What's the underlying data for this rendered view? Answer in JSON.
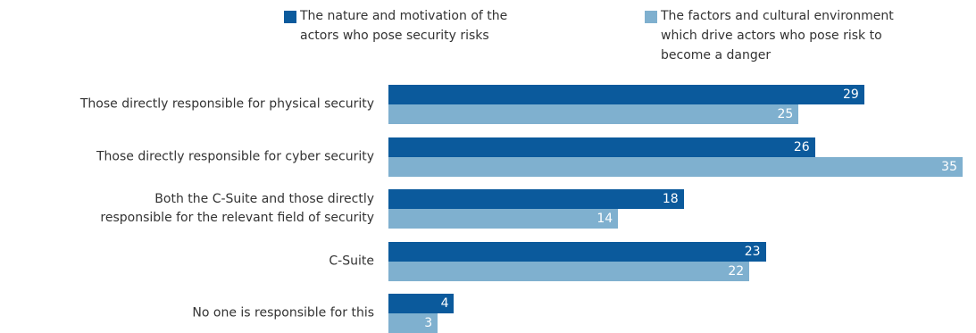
{
  "chart_data": {
    "type": "bar",
    "orientation": "horizontal",
    "categories": [
      "Those directly responsible for physical security",
      "Those directly responsible for cyber security",
      "Both the C-Suite and those directly\nresponsible for the relevant field of security",
      "C-Suite",
      "No one is responsible for this"
    ],
    "series": [
      {
        "name": "The nature and motivation of the\nactors who pose security risks",
        "color": "#0b5a9c",
        "values": [
          29,
          26,
          18,
          23,
          4
        ]
      },
      {
        "name": "The factors and cultural environment\nwhich drive actors who pose risk to\nbecome a danger",
        "color": "#7fb0cf",
        "values": [
          25,
          35,
          14,
          22,
          3
        ]
      }
    ]
  }
}
